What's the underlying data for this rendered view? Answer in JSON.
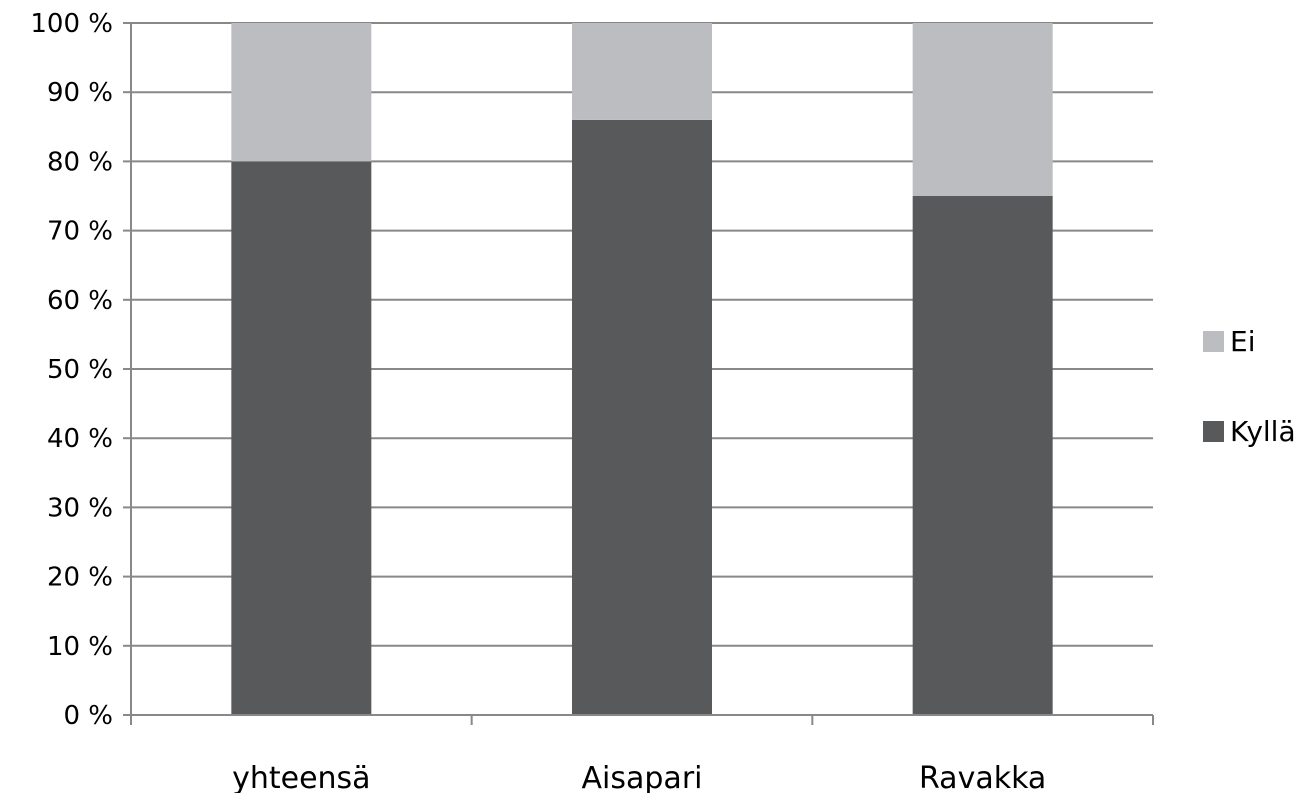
{
  "chart_data": {
    "type": "bar",
    "stacked": true,
    "percent_stacked": true,
    "categories": [
      "yhteensä",
      "Aisapari",
      "Ravakka"
    ],
    "series": [
      {
        "name": "Kyllä",
        "values": [
          80,
          86,
          75
        ],
        "color": "#58595b"
      },
      {
        "name": "Ei",
        "values": [
          20,
          14,
          25
        ],
        "color": "#bcbdc0"
      }
    ],
    "yticks": [
      "0 %",
      "10 %",
      "20 %",
      "30 %",
      "40 %",
      "50 %",
      "60 %",
      "70 %",
      "80 %",
      "90 %",
      "100 %"
    ],
    "ylim": [
      0,
      100
    ],
    "grid": true,
    "legend": {
      "position": "right",
      "entries": [
        "Ei",
        "Kyllä"
      ]
    }
  }
}
